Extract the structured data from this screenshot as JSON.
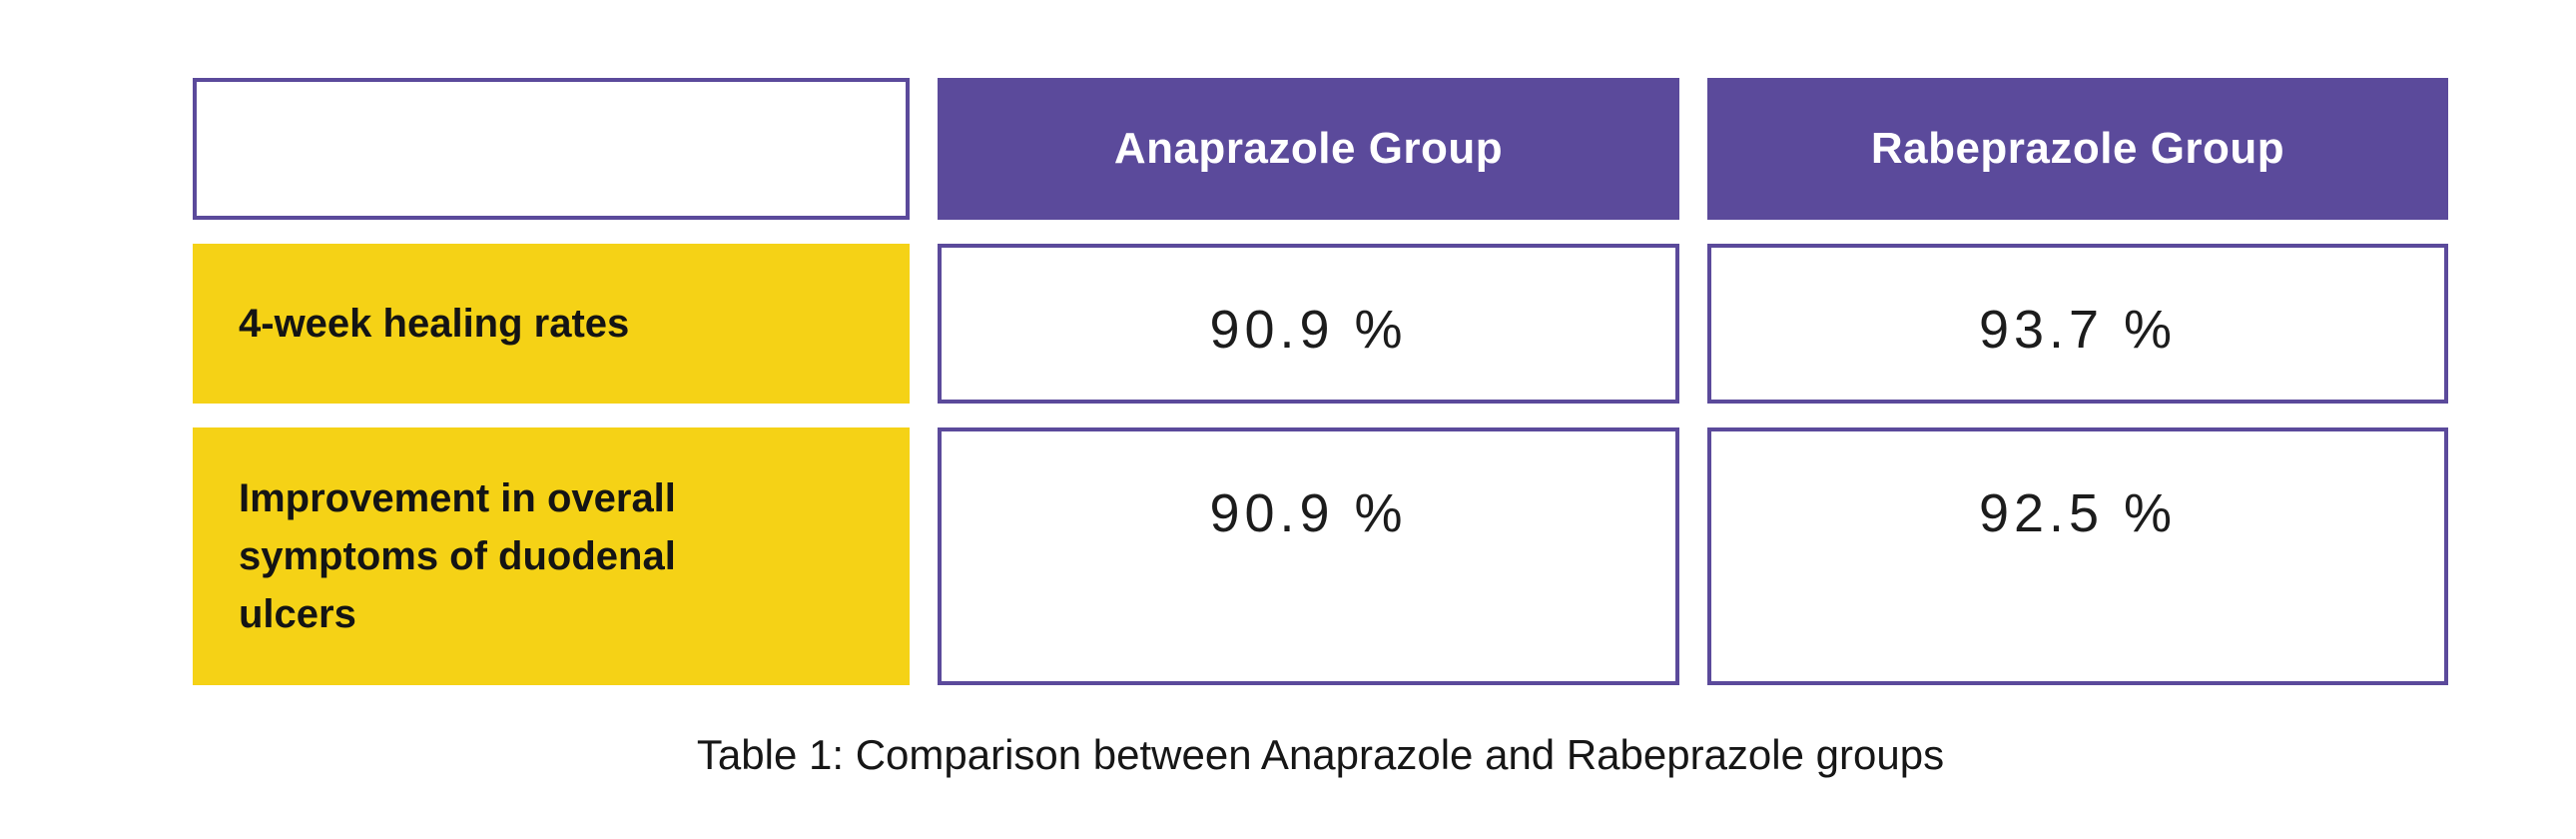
{
  "table": {
    "corner": "",
    "columns": [
      "Anaprazole Group",
      "Rabeprazole Group"
    ],
    "rows": [
      {
        "label": "4-week healing rates",
        "values": [
          "90.9 %",
          "93.7 %"
        ]
      },
      {
        "label": "Improvement in overall\nsymptoms of duodenal\nulcers",
        "values": [
          "90.9 %",
          "92.5 %"
        ]
      }
    ],
    "caption": "Table 1: Comparison between Anaprazole and Rabeprazole groups"
  },
  "colors": {
    "header_purple": "#5b4a9b",
    "border_purple": "#5b4a9b",
    "label_yellow": "#f5d216",
    "header_text": "#ffffff",
    "body_text": "#1c1c1c",
    "background": "#ffffff"
  },
  "chart_data": {
    "type": "table",
    "title": "Table 1: Comparison between Anaprazole and Rabeprazole groups",
    "columns": [
      "",
      "Anaprazole Group",
      "Rabeprazole Group"
    ],
    "rows": [
      [
        "4-week healing rates",
        "90.9 %",
        "93.7 %"
      ],
      [
        "Improvement in overall symptoms of duodenal ulcers",
        "90.9 %",
        "92.5 %"
      ]
    ],
    "values_numeric": {
      "4-week healing rates": {
        "Anaprazole Group": 90.9,
        "Rabeprazole Group": 93.7
      },
      "Improvement in overall symptoms of duodenal ulcers": {
        "Anaprazole Group": 90.9,
        "Rabeprazole Group": 92.5
      }
    },
    "unit": "%"
  }
}
